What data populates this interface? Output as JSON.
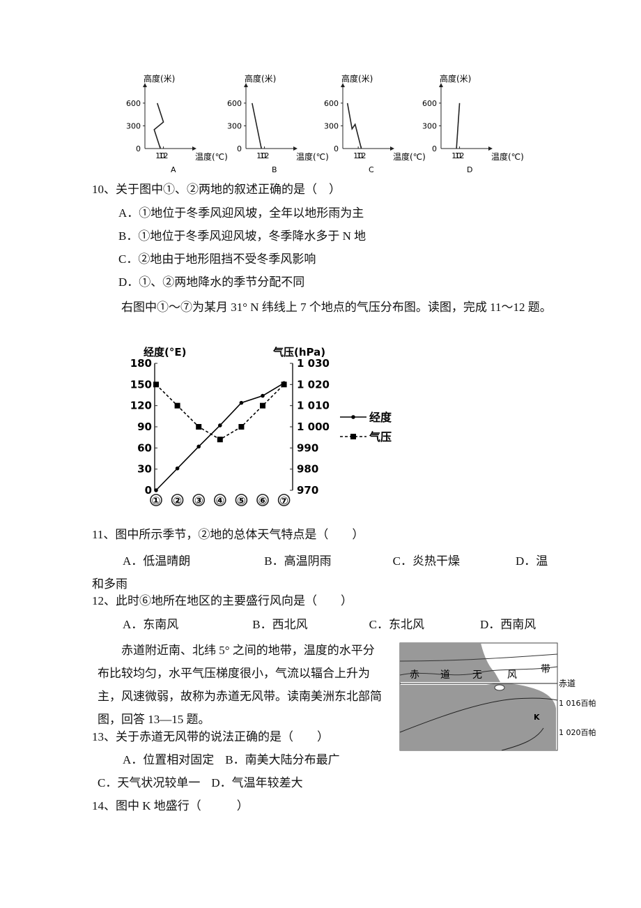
{
  "figure1": {
    "y_label": "高度(米)",
    "x_label": "温度(℃)",
    "xlim": [
      0,
      28
    ],
    "ylim": [
      0,
      700
    ],
    "xticks": [
      0,
      10,
      12
    ],
    "yticks": [
      0,
      300,
      600
    ],
    "panels": [
      {
        "label": "A",
        "x": [
          10,
          6,
          12,
          8
        ],
        "y": [
          0,
          250,
          350,
          600
        ]
      },
      {
        "label": "B",
        "x": [
          10,
          4
        ],
        "y": [
          0,
          600
        ]
      },
      {
        "label": "C",
        "x": [
          12,
          8,
          6,
          3
        ],
        "y": [
          0,
          320,
          260,
          600
        ]
      },
      {
        "label": "D",
        "x": [
          10,
          12
        ],
        "y": [
          0,
          600
        ]
      }
    ]
  },
  "q10": {
    "stem": "10、关于图中①、②两地的叙述正确的是（　）",
    "options": [
      "A．①地位于冬季风迎风坡，全年以地形雨为主",
      "B．①地位于冬季风迎风坡，冬季降水多于 N 地",
      "C．②地由于地形阻挡不受冬季风影响",
      "D．①、②两地降水的季节分配不同"
    ]
  },
  "intro1": "右图中①～⑦为某月 31° N 纬线上 7 个地点的气压分布图。读图，完成 11～12 题。",
  "chart_data": {
    "type": "line",
    "y_label": "经度(°E)",
    "y2_label": "气压(hPa)",
    "categories": [
      "①",
      "②",
      "③",
      "④",
      "⑤",
      "⑥",
      "⑦"
    ],
    "ylim": [
      0,
      180
    ],
    "yticks": [
      0,
      30,
      60,
      90,
      120,
      150,
      180
    ],
    "y2lim": [
      970,
      1030
    ],
    "y2ticks": [
      970,
      980,
      990,
      {
        "value": 1000,
        "label": "1 000"
      },
      {
        "value": 1010,
        "label": "1 010"
      },
      {
        "value": 1020,
        "label": "1 020"
      },
      {
        "value": 1030,
        "label": "1 030"
      }
    ],
    "series": [
      {
        "name": "经度",
        "color": "#000000",
        "dash": false,
        "marker": "circle",
        "values": [
          0,
          31,
          62,
          92,
          124,
          134,
          152
        ]
      },
      {
        "name": "气压",
        "color": "#000000",
        "dash": true,
        "marker": "square",
        "axis": "y2",
        "values": [
          1020,
          1010,
          1000,
          994,
          1000,
          1010,
          1020
        ]
      }
    ]
  },
  "q11": {
    "stem": "11、图中所示季节，②地的总体天气特点是（　　）",
    "options": [
      "A．低温晴朗",
      "B．高温阴雨",
      "C．炎热干燥",
      "D．温和多雨"
    ]
  },
  "q12": {
    "stem": "12、此时⑥地所在地区的主要盛行风向是（　　）",
    "options": [
      "A．东南风",
      "B．西北风",
      "C．东北风",
      "D．西南风"
    ]
  },
  "intro2": "赤道附近南、北纬 5° 之间的地带，温度的水平分布比较均匀，水平气压梯度很小，气流以辐合上升为主，风速微弱，故称为赤道无风带。读南美洲东北部简图，回答 13—15 题。",
  "map": {
    "band_chars": [
      "赤",
      "道",
      "无",
      "风",
      "带"
    ],
    "equator": "赤道",
    "isobars": [
      "1 016百帕",
      "1 020百帕"
    ],
    "point": "K"
  },
  "q13": {
    "stem": "13、关于赤道无风带的说法正确的是（　　）",
    "options": [
      "A．位置相对固定",
      "B．南美大陆分布最广",
      "C．天气状况较单一",
      "D．气温年较差大"
    ]
  },
  "q14": {
    "stem": "14、图中 K 地盛行（　　　）"
  }
}
